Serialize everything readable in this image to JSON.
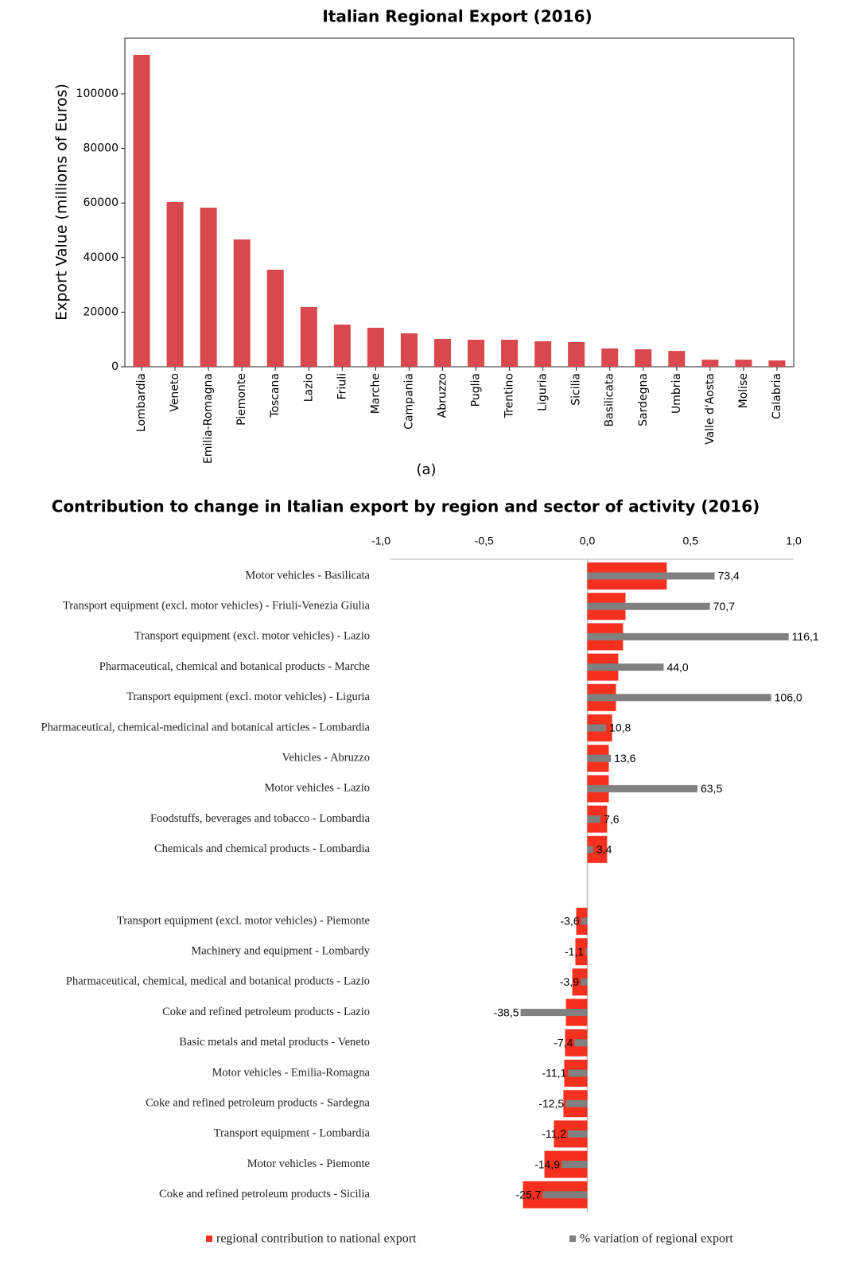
{
  "chart_data": [
    {
      "type": "bar",
      "title": "Italian Regional Export (2016)",
      "ylabel": "Export Value (millions of Euros)",
      "caption": "(a)",
      "categories": [
        "Lombardia",
        "Veneto",
        "Emilia-Romagna",
        "Piemonte",
        "Toscana",
        "Lazio",
        "Friuli",
        "Marche",
        "Campania",
        "Abruzzo",
        "Puglia",
        "Trentino",
        "Liguria",
        "Sicilia",
        "Basilicata",
        "Sardegna",
        "Umbria",
        "Valle d'Aosta",
        "Molise",
        "Calabria"
      ],
      "values": [
        114300,
        60350,
        58300,
        46650,
        35570,
        21870,
        15450,
        14290,
        12240,
        10200,
        9900,
        9900,
        9330,
        9040,
        6700,
        6400,
        5800,
        2600,
        2600,
        2300
      ],
      "color": "#d9484d",
      "ylim": [
        0,
        120400
      ],
      "yticks": [
        0,
        20000,
        40000,
        60000,
        80000,
        100000
      ]
    },
    {
      "type": "hbar",
      "title": "Contribution to change in Italian export by region and sector of activity (2016)",
      "categories": [
        "Motor vehicles - Basilicata",
        "Transport equipment (excl. motor vehicles) - Friuli-Venezia Giulia",
        "Transport equipment (excl. motor vehicles) - Lazio",
        "Pharmaceutical, chemical and botanical products - Marche",
        "Transport equipment (excl. motor vehicles) - Liguria",
        "Pharmaceutical, chemical-medicinal and botanical articles - Lombardia",
        "Vehicles - Abruzzo",
        "Motor vehicles - Lazio",
        "Foodstuffs, beverages and tobacco - Lombardia",
        "Chemicals and chemical products - Lombardia",
        "Transport equipment (excl. motor vehicles) - Piemonte",
        "Machinery and equipment - Lombardy",
        "Pharmaceutical, chemical, medical and botanical products - Lazio",
        "Coke and refined petroleum products - Lazio",
        "Basic metals and metal products - Veneto",
        "Motor vehicles - Emilia-Romagna",
        "Coke and refined petroleum products - Sardegna",
        "Transport equipment - Lombardia",
        "Motor vehicles - Piemonte",
        "Coke and refined petroleum products - Sicilia"
      ],
      "series": [
        {
          "name": "regional contribution to national export",
          "color": "#f5301e",
          "values": [
            0.385,
            0.185,
            0.173,
            0.15,
            0.139,
            0.12,
            0.104,
            0.104,
            0.096,
            0.096,
            -0.054,
            -0.058,
            -0.073,
            -0.104,
            -0.108,
            -0.112,
            -0.116,
            -0.162,
            -0.208,
            -0.312
          ]
        },
        {
          "name": "% variation of regional export",
          "color": "#808080",
          "axis": "x2",
          "values": [
            73.4,
            70.7,
            116.1,
            44.0,
            106.0,
            10.8,
            13.6,
            63.5,
            7.6,
            3.4,
            -3.6,
            -1.1,
            -3.9,
            -38.5,
            -7.4,
            -11.1,
            -12.5,
            -11.2,
            -14.9,
            -25.7
          ],
          "value_labels": [
            "73,4",
            "70,7",
            "116,1",
            "44,0",
            "106,0",
            "10,8",
            "13,6",
            "63,5",
            "7,6",
            "3,4",
            "-3,6",
            "-1,1",
            "-3,9",
            "-38,5",
            "-7,4",
            "-11,1",
            "-12,5",
            "-11,2",
            "-14,9",
            "-25,7"
          ]
        }
      ],
      "xlim": [
        -1,
        1
      ],
      "x2lim": [
        -119,
        119
      ],
      "xticks": [
        {
          "value": -1,
          "label": "-1,0"
        },
        {
          "value": -0.5,
          "label": "-0,5"
        },
        {
          "value": 0,
          "label": "0,0"
        },
        {
          "value": 0.5,
          "label": "0,5"
        },
        {
          "value": 1,
          "label": "1,0"
        }
      ]
    }
  ]
}
